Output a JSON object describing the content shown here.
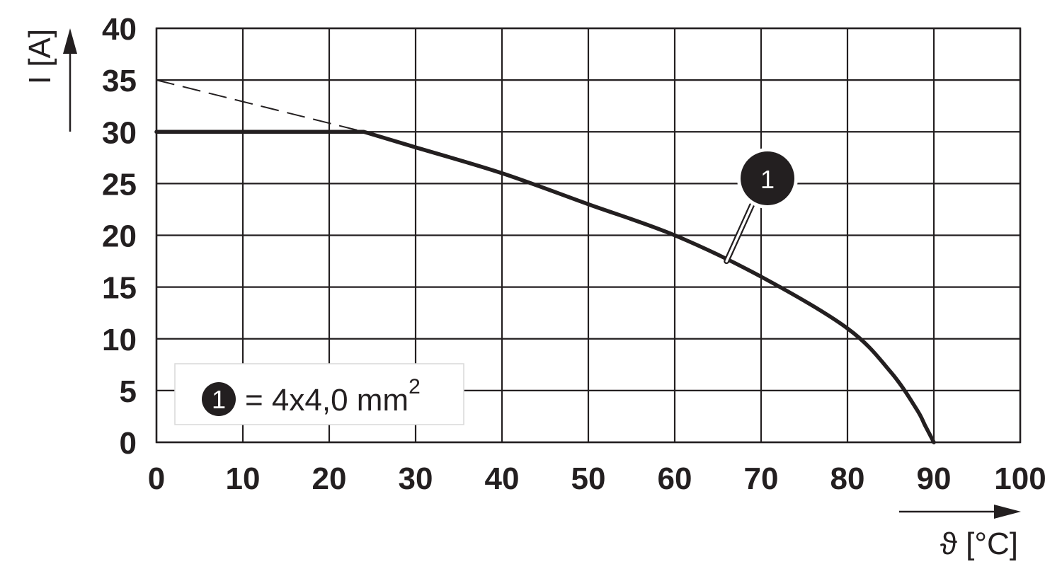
{
  "chart_data": {
    "type": "line",
    "title": "",
    "xlabel": "ϑ [°C]",
    "ylabel": "I [A]",
    "xlim": [
      0,
      100
    ],
    "ylim": [
      0,
      40
    ],
    "x_ticks": [
      0,
      10,
      20,
      30,
      40,
      50,
      60,
      70,
      80,
      90,
      100
    ],
    "y_ticks": [
      0,
      5,
      10,
      15,
      20,
      25,
      30,
      35,
      40
    ],
    "grid": true,
    "series": [
      {
        "marker": "1",
        "style": "solid",
        "color": "#231f20",
        "x": [
          0,
          24,
          30,
          40,
          50,
          60,
          70,
          80,
          85,
          88,
          89,
          90
        ],
        "y": [
          30,
          30,
          28.5,
          26,
          23,
          20,
          16,
          11,
          6.8,
          3.2,
          1.6,
          0
        ]
      },
      {
        "style": "dashed",
        "color": "#231f20",
        "x": [
          0,
          24
        ],
        "y": [
          35,
          30
        ]
      }
    ],
    "annotation": {
      "label": "1",
      "x": 66,
      "y": 17.5
    },
    "legend": {
      "position": "bottom-left",
      "marker": "1",
      "text": "= 4x4,0 mm",
      "superscript": "2"
    }
  }
}
